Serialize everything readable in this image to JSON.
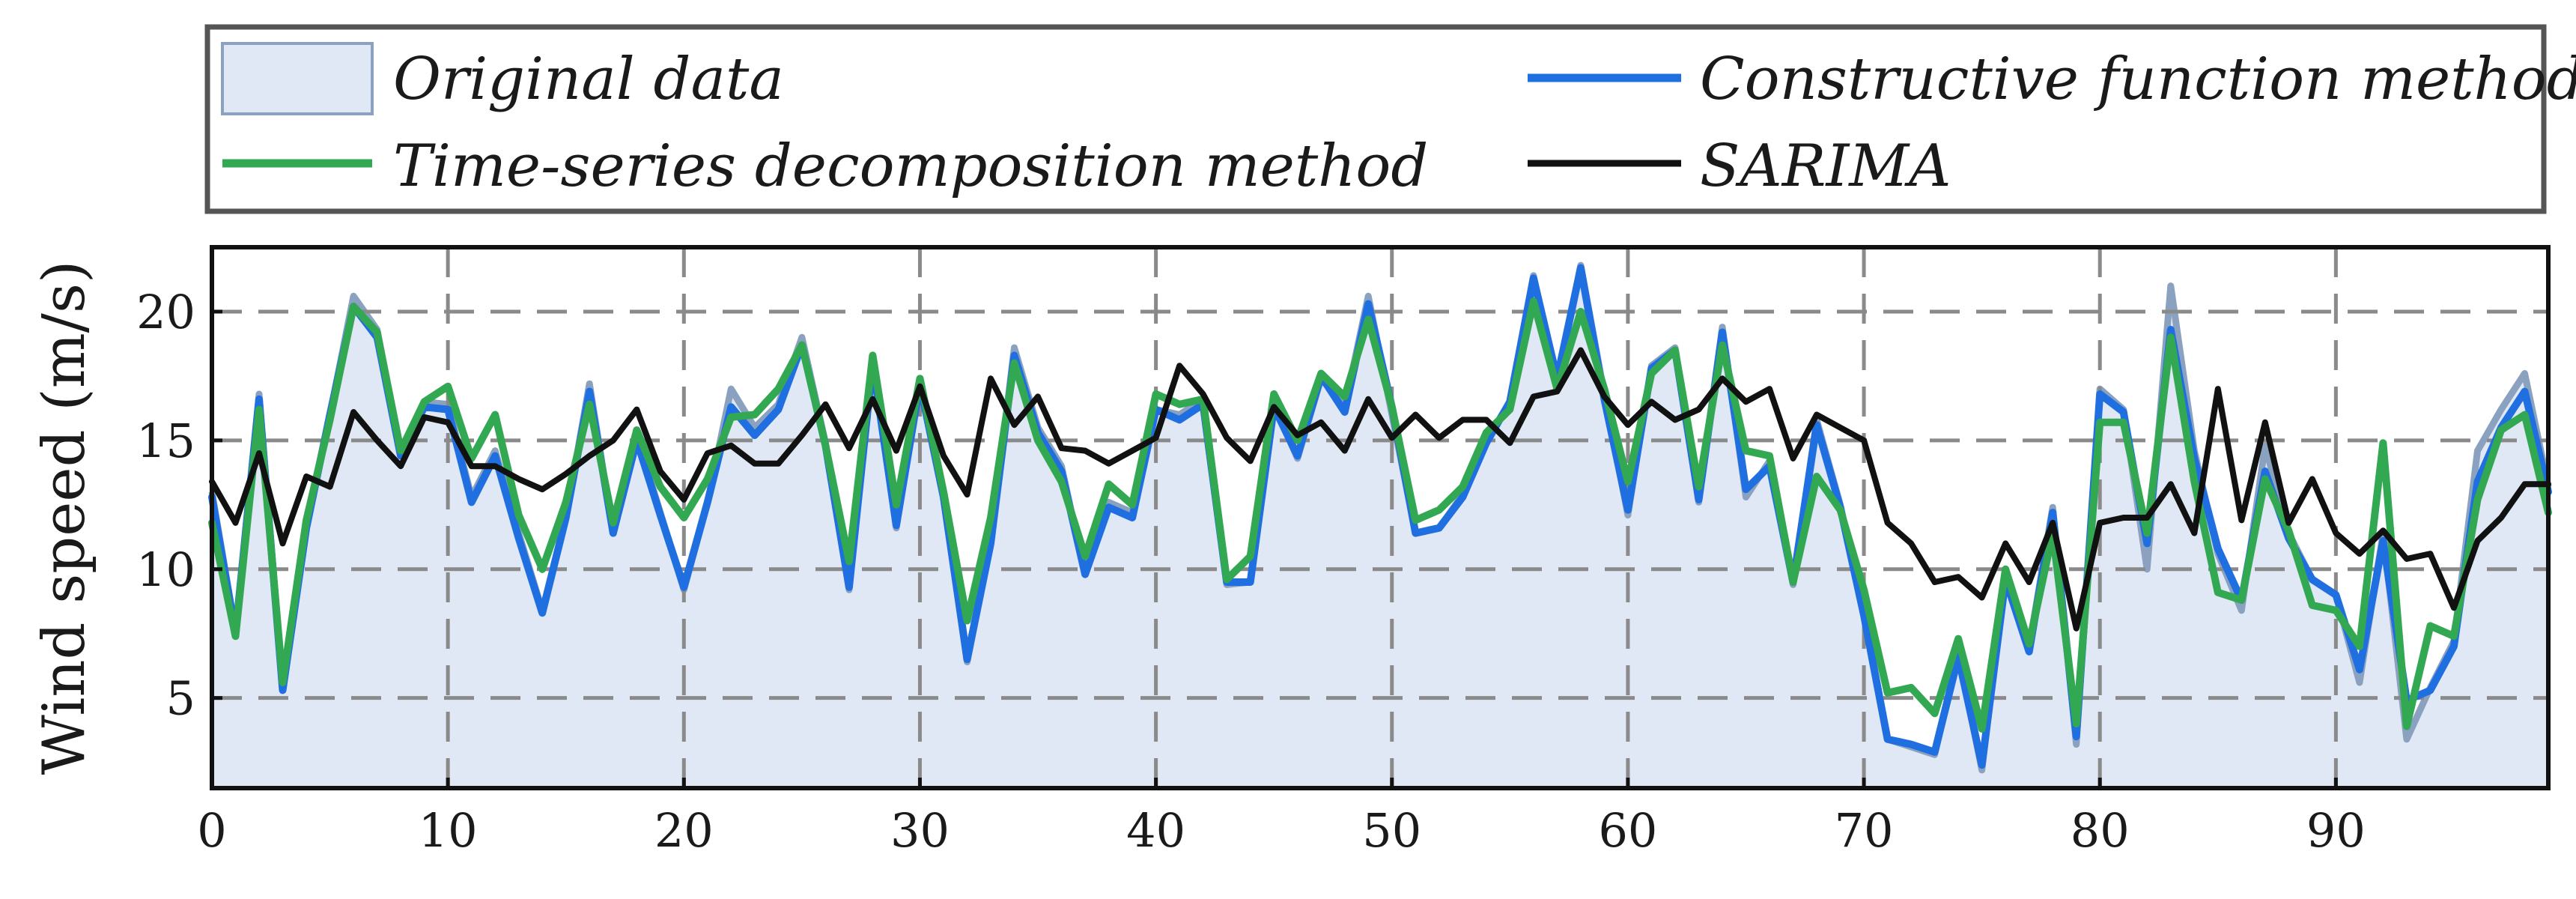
{
  "chart_data": {
    "type": "line",
    "ylabel": "Wind speed (m/s)",
    "xlabel": "",
    "xlim": [
      0,
      99
    ],
    "ylim": [
      1.5,
      22.5
    ],
    "xticks": [
      0,
      10,
      20,
      30,
      40,
      50,
      60,
      70,
      80,
      90
    ],
    "yticks": [
      5,
      10,
      15,
      20
    ],
    "grid": true,
    "legend_position": "top, above plot",
    "x": [
      0,
      1,
      2,
      3,
      4,
      5,
      6,
      7,
      8,
      9,
      10,
      11,
      12,
      13,
      14,
      15,
      16,
      17,
      18,
      19,
      20,
      21,
      22,
      23,
      24,
      25,
      26,
      27,
      28,
      29,
      30,
      31,
      32,
      33,
      34,
      35,
      36,
      37,
      38,
      39,
      40,
      41,
      42,
      43,
      44,
      45,
      46,
      47,
      48,
      49,
      50,
      51,
      52,
      53,
      54,
      55,
      56,
      57,
      58,
      59,
      60,
      61,
      62,
      63,
      64,
      65,
      66,
      67,
      68,
      69,
      70,
      71,
      72,
      73,
      74,
      75,
      76,
      77,
      78,
      79,
      80,
      81,
      82,
      83,
      84,
      85,
      86,
      87,
      88,
      89,
      90,
      91,
      92,
      93,
      94,
      95,
      96,
      97,
      98,
      99
    ],
    "series": [
      {
        "name": "Original data",
        "style": "area",
        "color": "#dfe8f4",
        "edge_color": "#8aa2c0",
        "values": [
          13.0,
          7.6,
          16.8,
          5.4,
          11.8,
          16.0,
          20.6,
          19.3,
          14.5,
          16.5,
          16.4,
          12.8,
          14.6,
          11.4,
          8.4,
          12.0,
          17.2,
          11.4,
          15.2,
          12.2,
          9.2,
          12.6,
          17.0,
          15.5,
          16.4,
          19.0,
          14.9,
          9.2,
          18.2,
          11.6,
          17.4,
          13.0,
          6.4,
          11.0,
          18.6,
          15.5,
          14.0,
          9.8,
          12.6,
          12.2,
          16.2,
          16.0,
          16.6,
          9.4,
          9.5,
          16.4,
          14.3,
          17.4,
          16.3,
          20.6,
          16.0,
          11.4,
          11.6,
          12.9,
          15.0,
          16.5,
          21.4,
          17.2,
          21.8,
          16.8,
          12.1,
          17.9,
          18.6,
          12.6,
          19.4,
          12.8,
          14.2,
          9.4,
          15.8,
          12.5,
          8.4,
          3.4,
          3.1,
          2.8,
          6.8,
          2.2,
          9.8,
          7.0,
          12.4,
          3.2,
          17.0,
          16.2,
          10.0,
          21.0,
          14.6,
          10.6,
          8.4,
          14.8,
          11.4,
          9.6,
          9.0,
          5.6,
          11.4,
          3.4,
          5.4,
          7.2,
          14.6,
          16.2,
          17.6,
          13.2
        ]
      },
      {
        "name": "Constructive function method",
        "style": "line",
        "color": "#1f6fe0",
        "values": [
          12.8,
          7.5,
          16.6,
          5.3,
          11.6,
          16.0,
          20.2,
          19.0,
          14.4,
          16.3,
          16.2,
          12.6,
          14.4,
          11.2,
          8.3,
          12.0,
          16.9,
          11.4,
          15.0,
          12.1,
          9.3,
          12.6,
          16.3,
          15.2,
          16.2,
          18.7,
          14.8,
          9.3,
          18.0,
          11.7,
          17.2,
          12.8,
          6.5,
          11.0,
          18.3,
          15.3,
          13.8,
          9.8,
          12.4,
          12.0,
          16.2,
          15.8,
          16.4,
          9.5,
          9.5,
          16.3,
          14.4,
          17.5,
          16.1,
          20.3,
          16.3,
          11.4,
          11.6,
          12.8,
          14.9,
          16.5,
          21.3,
          17.4,
          21.7,
          16.6,
          12.3,
          17.8,
          18.5,
          12.7,
          19.2,
          13.1,
          14.0,
          9.5,
          15.6,
          12.4,
          8.2,
          3.4,
          3.2,
          2.9,
          6.6,
          2.4,
          9.6,
          6.8,
          12.2,
          3.5,
          16.8,
          16.1,
          11.0,
          19.3,
          14.3,
          10.8,
          8.8,
          13.8,
          11.2,
          9.6,
          9.0,
          6.1,
          11.1,
          4.9,
          5.3,
          7.0,
          13.4,
          15.5,
          16.9,
          13.0
        ]
      },
      {
        "name": "Time-series decomposition method",
        "style": "line",
        "color": "#33a852",
        "values": [
          11.8,
          7.4,
          16.2,
          5.6,
          11.9,
          15.8,
          20.2,
          19.2,
          14.6,
          16.5,
          17.1,
          14.3,
          16.0,
          12.1,
          10.0,
          12.6,
          16.4,
          11.8,
          15.4,
          13.2,
          12.0,
          13.5,
          15.9,
          16.0,
          17.0,
          18.7,
          14.8,
          10.3,
          18.3,
          12.5,
          17.4,
          13.0,
          8.0,
          12.0,
          18.0,
          15.0,
          13.4,
          10.5,
          13.3,
          12.5,
          16.8,
          16.4,
          16.6,
          9.6,
          10.5,
          16.8,
          15.0,
          17.6,
          16.7,
          19.7,
          16.3,
          11.9,
          12.3,
          13.2,
          15.3,
          16.2,
          20.4,
          17.0,
          20.0,
          17.0,
          13.4,
          17.6,
          18.5,
          13.2,
          18.7,
          14.6,
          14.4,
          9.5,
          13.6,
          12.3,
          9.2,
          5.2,
          5.4,
          4.4,
          7.3,
          3.8,
          10.0,
          7.1,
          11.4,
          4.0,
          15.7,
          15.7,
          11.4,
          19.0,
          13.4,
          9.1,
          8.8,
          13.5,
          11.5,
          8.6,
          8.4,
          7.0,
          14.9,
          3.9,
          7.8,
          7.4,
          12.7,
          15.4,
          16.0,
          12.2
        ]
      },
      {
        "name": "SARIMA",
        "style": "line",
        "color": "#111111",
        "values": [
          13.4,
          11.8,
          14.5,
          11.0,
          13.6,
          13.2,
          16.1,
          15.0,
          14.0,
          15.9,
          15.7,
          14.0,
          14.0,
          13.5,
          13.1,
          13.7,
          14.4,
          15.0,
          16.2,
          13.8,
          12.7,
          14.5,
          14.8,
          14.1,
          14.1,
          15.2,
          16.4,
          14.7,
          16.6,
          14.6,
          17.1,
          14.4,
          12.9,
          17.4,
          15.6,
          16.7,
          14.7,
          14.6,
          14.1,
          14.6,
          15.1,
          17.9,
          16.8,
          15.1,
          14.2,
          16.3,
          15.2,
          15.7,
          14.6,
          16.6,
          15.1,
          16.0,
          15.1,
          15.8,
          15.8,
          14.9,
          16.7,
          16.9,
          18.5,
          16.7,
          15.6,
          16.5,
          15.8,
          16.2,
          17.4,
          16.5,
          17.0,
          14.3,
          16.0,
          15.5,
          15.0,
          11.8,
          11.0,
          9.5,
          9.7,
          8.9,
          11.0,
          9.5,
          11.8,
          7.7,
          11.8,
          12.0,
          12.0,
          13.3,
          11.4,
          17.0,
          11.9,
          15.7,
          11.8,
          13.5,
          11.4,
          10.6,
          11.5,
          10.4,
          10.6,
          8.5,
          11.1,
          12.0,
          13.3,
          13.3
        ]
      }
    ]
  }
}
